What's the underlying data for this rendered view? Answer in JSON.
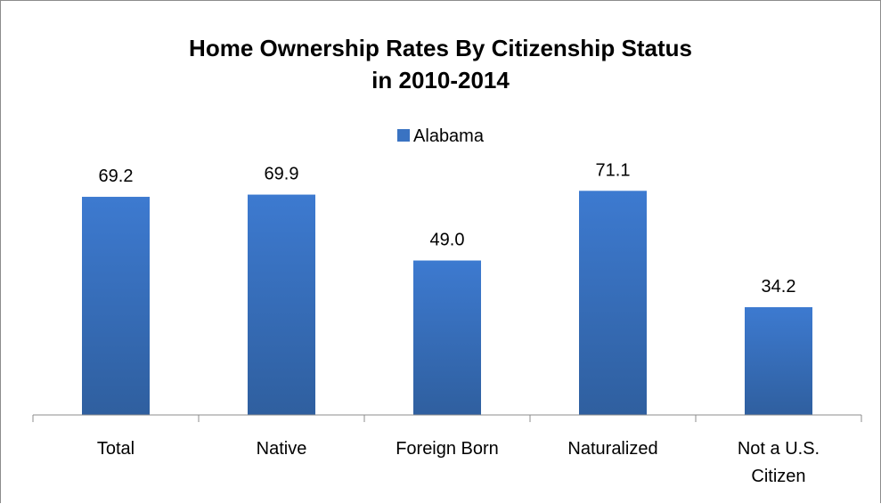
{
  "chart_data": {
    "type": "bar",
    "title": [
      "Home Ownership Rates By Citizenship Status",
      "in 2010-2014"
    ],
    "categories": [
      [
        "Total"
      ],
      [
        "Native"
      ],
      [
        "Foreign Born"
      ],
      [
        "Naturalized"
      ],
      [
        "Not a U.S.",
        "Citizen"
      ]
    ],
    "series": [
      {
        "name": "Alabama",
        "values": [
          69.2,
          69.9,
          49.0,
          71.1,
          34.2
        ],
        "color": "#3a73c2"
      }
    ],
    "data_labels": [
      "69.2",
      "69.9",
      "49.0",
      "71.1",
      "34.2"
    ],
    "ylim": [
      0,
      100
    ],
    "y_axis_visible": false,
    "grid": false,
    "legend_position": "top"
  }
}
